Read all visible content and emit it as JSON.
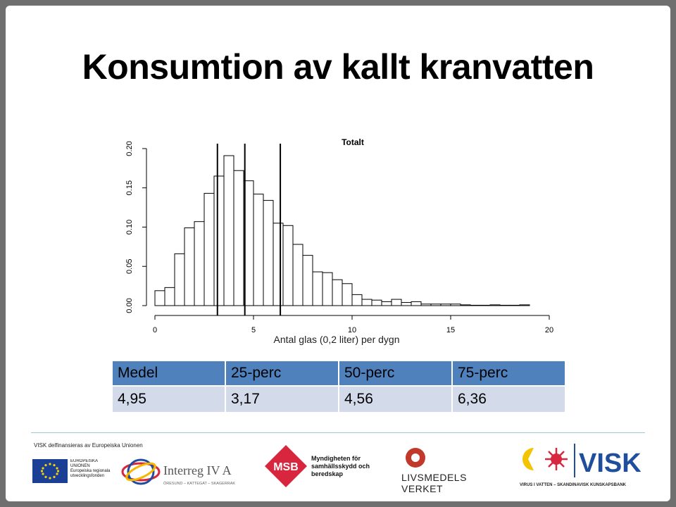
{
  "slide": {
    "title": "Konsumtion av kallt kranvatten"
  },
  "chart_data": {
    "type": "bar",
    "title": "Totalt",
    "xlabel": "Antal glas (0,2 liter) per dygn",
    "ylabel": "",
    "xlim": [
      0,
      20
    ],
    "ylim": [
      0,
      0.2
    ],
    "bin_width": 0.5,
    "x_ticks": [
      "0",
      "5",
      "10",
      "15",
      "20"
    ],
    "y_ticks": [
      "0.00",
      "0.05",
      "0.10",
      "0.15",
      "0.20"
    ],
    "x": [
      0,
      0.5,
      1,
      1.5,
      2,
      2.5,
      3,
      3.5,
      4,
      4.5,
      5,
      5.5,
      6,
      6.5,
      7,
      7.5,
      8,
      8.5,
      9,
      9.5,
      10,
      10.5,
      11,
      11.5,
      12,
      12.5,
      13,
      13.5,
      14,
      14.5,
      15,
      15.5,
      16,
      16.5,
      17,
      17.5,
      18,
      18.5
    ],
    "values": [
      0.019,
      0.023,
      0.066,
      0.099,
      0.107,
      0.143,
      0.165,
      0.191,
      0.172,
      0.159,
      0.142,
      0.134,
      0.105,
      0.102,
      0.078,
      0.064,
      0.043,
      0.042,
      0.033,
      0.028,
      0.014,
      0.008,
      0.007,
      0.005,
      0.008,
      0.004,
      0.005,
      0.002,
      0.002,
      0.002,
      0.002,
      0.001,
      0.0005,
      0.0005,
      0.001,
      0.0005,
      0.0005,
      0.001
    ],
    "vlines": [
      3.17,
      4.56,
      6.36
    ],
    "grid": false,
    "legend": "none"
  },
  "stats": {
    "headers": [
      "Medel",
      "25-perc",
      "50-perc",
      "75-perc"
    ],
    "values": [
      "4,95",
      "3,17",
      "4,56",
      "6,36"
    ]
  },
  "footer": {
    "funding_text": "VISK delfinansieras av Europeiska Unionen",
    "eu_text": "EUROPEISKA UNIONEN Europeiska regionala utvecklingsfonden",
    "interreg_text": "Interreg IV A",
    "interreg_sub": "ÖRESUND – KATTEGAT – SKAGERRAK",
    "msb_text": "MSB",
    "msb_name": "Myndigheten för samhällsskydd och beredskap",
    "livs_text": "LIVSMEDELS VERKET",
    "visk_text": "VISK",
    "visk_sub": "VIRUS I VATTEN – SKANDINAVISK KUNSKAPSBANK",
    "colors": {
      "visk_blue": "#1f4e9c",
      "msb_red": "#d7263d",
      "eu_blue": "#1a3f94",
      "eu_star": "#f5d20a"
    }
  }
}
